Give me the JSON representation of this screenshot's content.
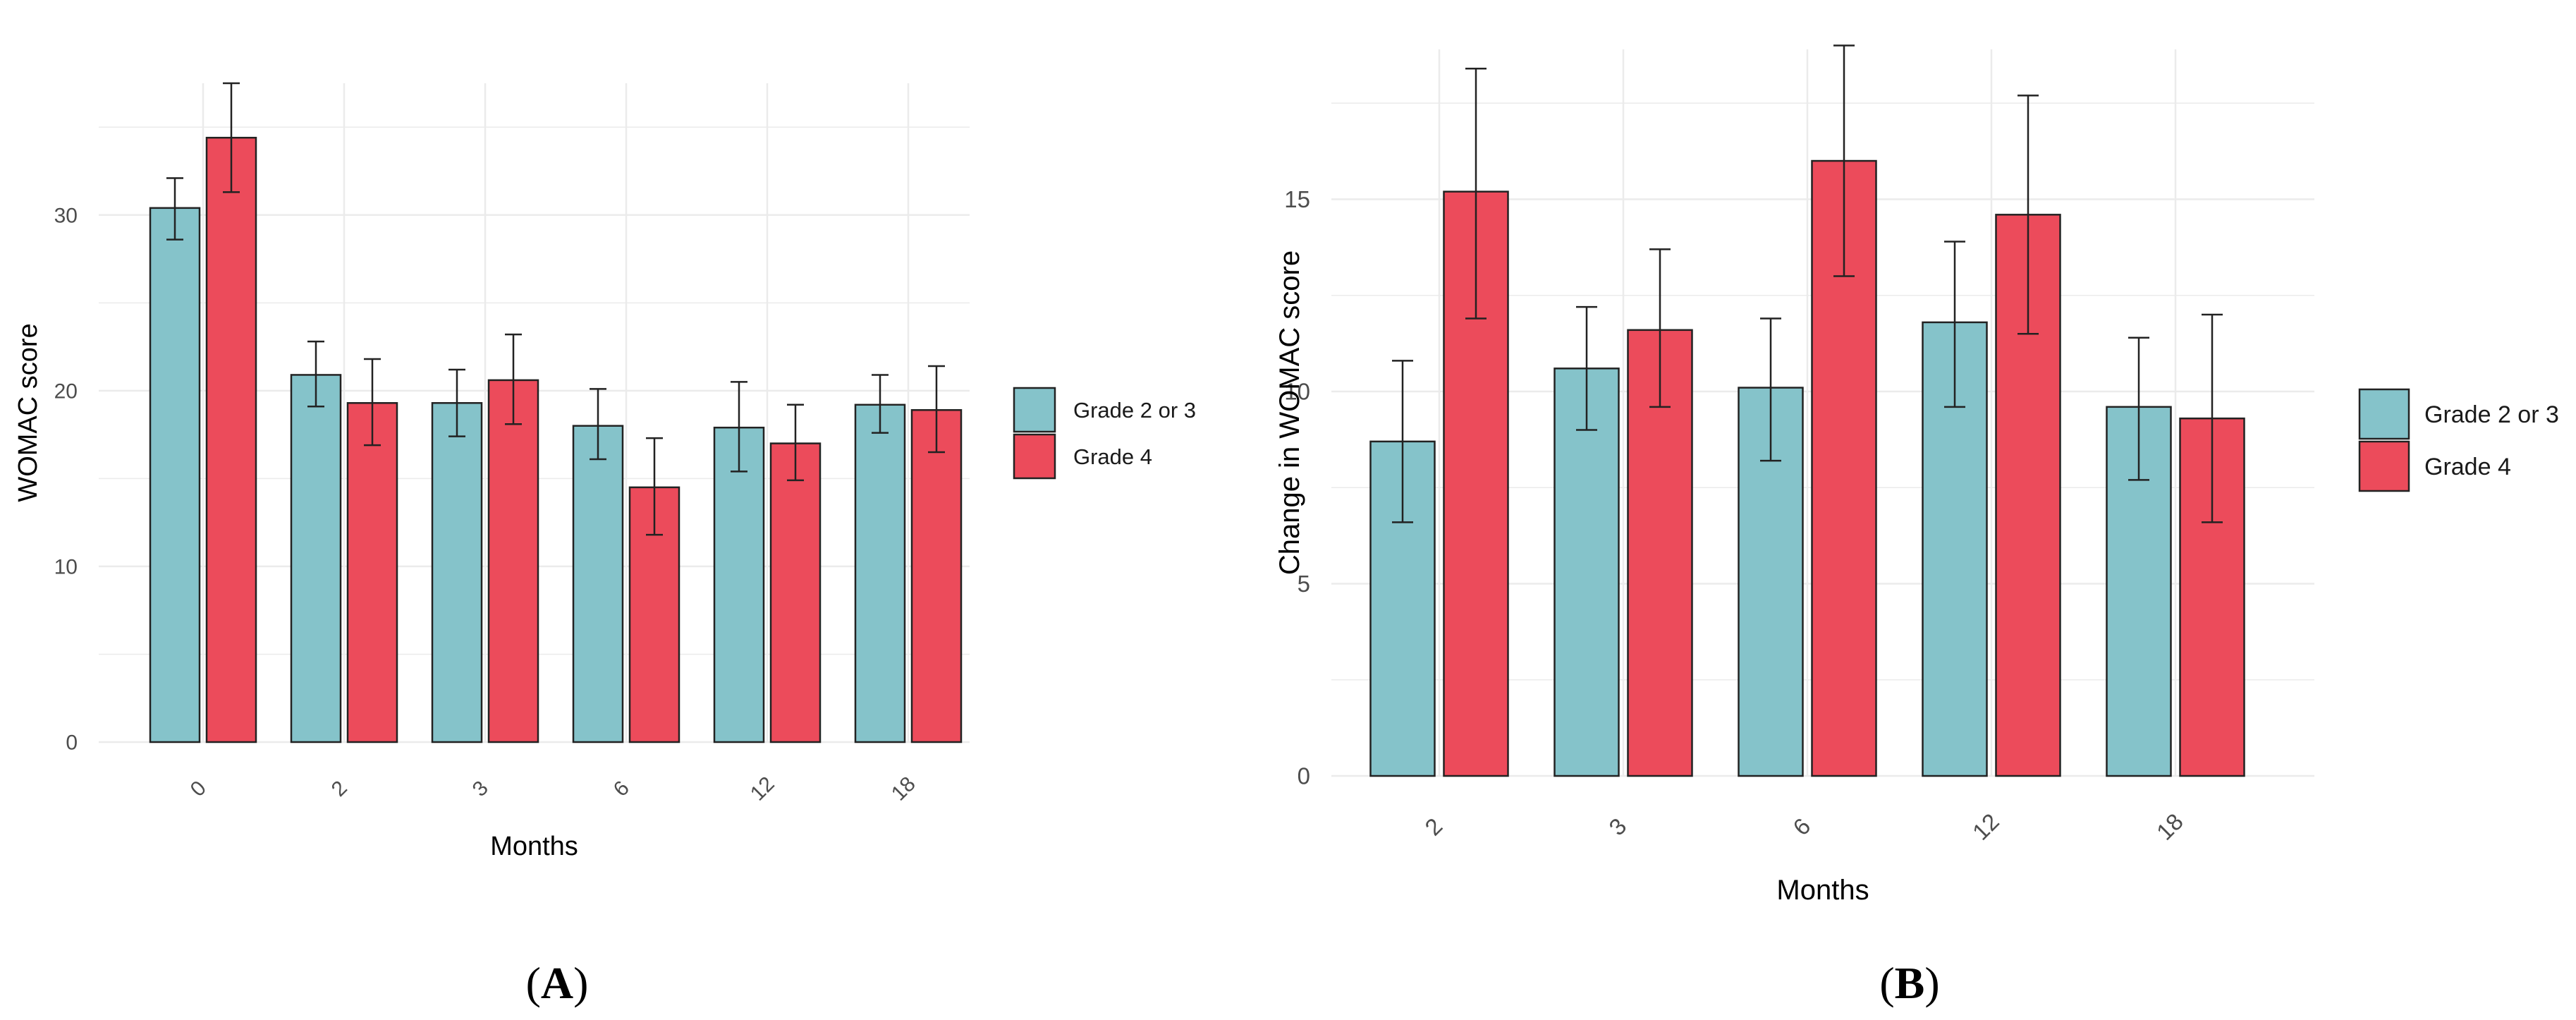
{
  "colors": {
    "teal": "#85c3ca",
    "red": "#ec4b5b",
    "grid": "#ebebeb",
    "tick": "#4d4d4d",
    "axis_title": "#000000"
  },
  "chart_data": [
    {
      "type": "bar",
      "panel_label": "A",
      "xlabel": "Months",
      "ylabel": "WOMAC score",
      "ylim": [
        0,
        37.5
      ],
      "yticks": [
        0,
        10,
        20,
        30
      ],
      "categories": [
        "0",
        "2",
        "3",
        "6",
        "12",
        "18"
      ],
      "series": [
        {
          "name": "Grade 2 or 3",
          "color": "#85c3ca",
          "values": [
            30.4,
            20.9,
            19.3,
            18.0,
            17.9,
            19.2
          ],
          "err_low": [
            28.6,
            19.1,
            17.4,
            16.1,
            15.4,
            17.6
          ],
          "err_high": [
            32.1,
            22.8,
            21.2,
            20.1,
            20.5,
            20.9
          ]
        },
        {
          "name": "Grade 4",
          "color": "#ec4b5b",
          "values": [
            34.4,
            19.3,
            20.6,
            14.5,
            17.0,
            18.9
          ],
          "err_low": [
            31.3,
            16.9,
            18.1,
            11.8,
            14.9,
            16.5
          ],
          "err_high": [
            37.5,
            21.8,
            23.2,
            17.3,
            19.2,
            21.4
          ]
        }
      ],
      "legend": {
        "position": "right",
        "entries": [
          "Grade 2 or 3",
          "Grade 4"
        ]
      }
    },
    {
      "type": "bar",
      "panel_label": "B",
      "xlabel": "Months",
      "ylabel": "Change in WOMAC score",
      "ylim": [
        0,
        18.9
      ],
      "yticks": [
        0,
        5,
        10,
        15
      ],
      "categories": [
        "2",
        "3",
        "6",
        "12",
        "18"
      ],
      "series": [
        {
          "name": "Grade 2 or 3",
          "color": "#85c3ca",
          "values": [
            8.7,
            10.6,
            10.1,
            11.8,
            9.6
          ],
          "err_low": [
            6.6,
            9.0,
            8.2,
            9.6,
            7.7
          ],
          "err_high": [
            10.8,
            12.2,
            11.9,
            13.9,
            11.4
          ]
        },
        {
          "name": "Grade 4",
          "color": "#ec4b5b",
          "values": [
            15.2,
            11.6,
            16.0,
            14.6,
            9.3
          ],
          "err_low": [
            11.9,
            9.6,
            13.0,
            11.5,
            6.6
          ],
          "err_high": [
            18.4,
            13.7,
            19.0,
            17.7,
            12.0
          ]
        }
      ],
      "legend": {
        "position": "right",
        "entries": [
          "Grade 2 or 3",
          "Grade 4"
        ]
      }
    }
  ]
}
